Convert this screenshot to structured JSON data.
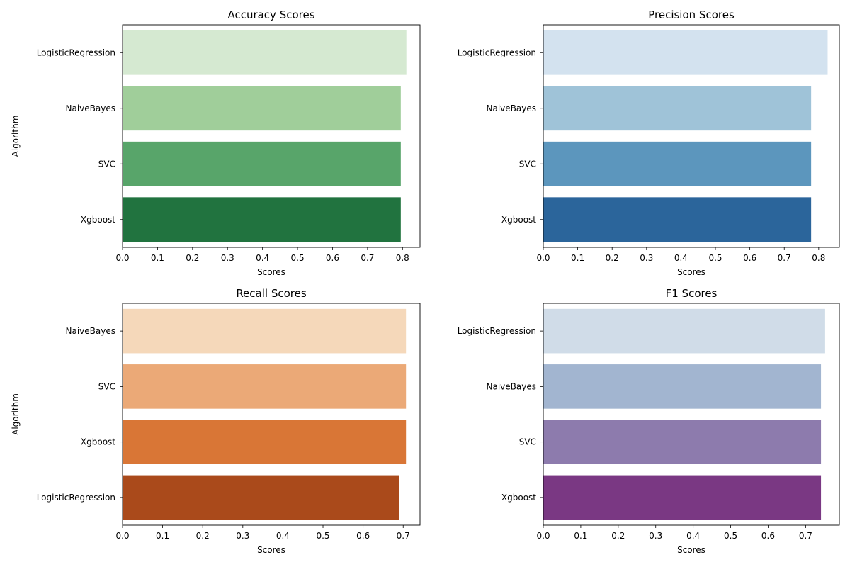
{
  "chart_data": [
    {
      "type": "bar",
      "orientation": "horizontal",
      "title": "Accuracy Scores",
      "xlabel": "Scores",
      "ylabel": "Algorithm",
      "categories": [
        "LogisticRegression",
        "NaiveBayes",
        "SVC",
        "Xgboost"
      ],
      "values": [
        0.811,
        0.795,
        0.795,
        0.795
      ],
      "colors": [
        "#d5e9d1",
        "#a0ce9a",
        "#58a56a",
        "#21733f"
      ],
      "xlim": [
        0,
        0.85
      ],
      "xticks": [
        "0.0",
        "0.1",
        "0.2",
        "0.3",
        "0.4",
        "0.5",
        "0.6",
        "0.7",
        "0.8"
      ],
      "grid": false
    },
    {
      "type": "bar",
      "orientation": "horizontal",
      "title": "Precision Scores",
      "xlabel": "Scores",
      "ylabel": "",
      "categories": [
        "LogisticRegression",
        "NaiveBayes",
        "SVC",
        "Xgboost"
      ],
      "values": [
        0.826,
        0.778,
        0.778,
        0.778
      ],
      "colors": [
        "#d3e2ef",
        "#9fc3d8",
        "#5c96bd",
        "#2b659b"
      ],
      "xlim": [
        0,
        0.86
      ],
      "xticks": [
        "0.0",
        "0.1",
        "0.2",
        "0.3",
        "0.4",
        "0.5",
        "0.6",
        "0.7",
        "0.8"
      ],
      "grid": false
    },
    {
      "type": "bar",
      "orientation": "horizontal",
      "title": "Recall Scores",
      "xlabel": "Scores",
      "ylabel": "Algorithm",
      "categories": [
        "NaiveBayes",
        "SVC",
        "Xgboost",
        "LogisticRegression"
      ],
      "values": [
        0.707,
        0.707,
        0.707,
        0.69
      ],
      "colors": [
        "#f5d8ba",
        "#eba977",
        "#d97636",
        "#aa4a1b"
      ],
      "xlim": [
        0,
        0.742
      ],
      "xticks": [
        "0.0",
        "0.1",
        "0.2",
        "0.3",
        "0.4",
        "0.5",
        "0.6",
        "0.7"
      ],
      "grid": false
    },
    {
      "type": "bar",
      "orientation": "horizontal",
      "title": "F1 Scores",
      "xlabel": "Scores",
      "ylabel": "",
      "categories": [
        "LogisticRegression",
        "NaiveBayes",
        "SVC",
        "Xgboost"
      ],
      "values": [
        0.752,
        0.741,
        0.741,
        0.741
      ],
      "colors": [
        "#d0dce8",
        "#a2b5d0",
        "#8d7bad",
        "#7a3883"
      ],
      "xlim": [
        0,
        0.79
      ],
      "xticks": [
        "0.0",
        "0.1",
        "0.2",
        "0.3",
        "0.4",
        "0.5",
        "0.6",
        "0.7"
      ],
      "grid": false
    }
  ]
}
